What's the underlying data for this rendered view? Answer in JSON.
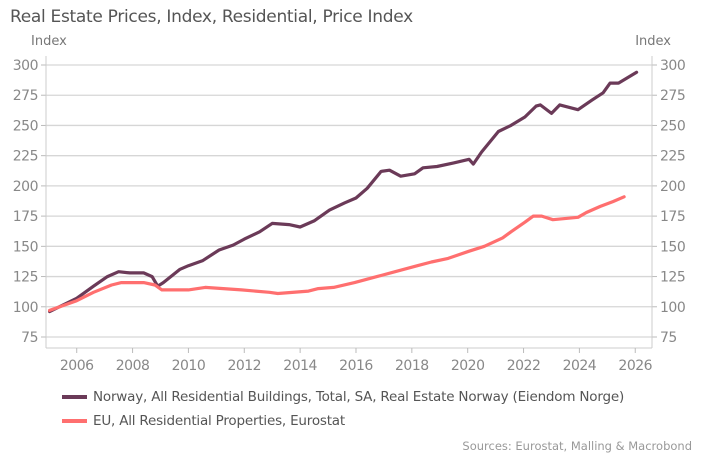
{
  "chart_data": {
    "type": "line",
    "title": "Real Estate Prices, Index, Residential, Price Index",
    "ylabel_left": "Index",
    "ylabel_right": "Index",
    "xlim": [
      2004.9,
      2026.6
    ],
    "ylim": [
      66,
      307
    ],
    "yticks": [
      75,
      100,
      125,
      150,
      175,
      200,
      225,
      250,
      275,
      300
    ],
    "xticks": [
      2006,
      2008,
      2010,
      2012,
      2014,
      2016,
      2018,
      2020,
      2022,
      2024,
      2026
    ],
    "grid": true,
    "legend_position": "bottom-left",
    "series": [
      {
        "name": "Norway, All Residential Buildings, Total, SA, Real Estate Norway (Eiendom Norge)",
        "color": "#6b3a58",
        "x": [
          2005.03,
          2006,
          2006.6,
          2007.1,
          2007.5,
          2007.9,
          2008.4,
          2008.7,
          2008.9,
          2009.1,
          2009.7,
          2010,
          2010.5,
          2011.1,
          2011.6,
          2012,
          2012.55,
          2013,
          2013.6,
          2014,
          2014.5,
          2015.05,
          2015.6,
          2016,
          2016.4,
          2016.9,
          2017.2,
          2017.6,
          2018.1,
          2018.4,
          2018.9,
          2019.5,
          2020.05,
          2020.2,
          2020.5,
          2021.1,
          2021.55,
          2022.05,
          2022.45,
          2022.6,
          2023.0,
          2023.3,
          2023.95,
          2024.45,
          2024.85,
          2025.1,
          2025.4,
          2026.05
        ],
        "y": [
          96,
          107,
          117,
          125,
          129,
          128,
          128,
          125,
          117,
          120,
          131,
          134,
          138,
          147,
          151,
          156,
          162,
          169,
          168,
          166,
          171,
          180,
          186,
          190,
          198,
          212,
          213,
          208,
          210,
          215,
          216,
          219,
          222,
          218,
          228,
          245,
          250,
          257,
          266,
          267,
          260,
          267,
          263,
          271,
          277,
          285,
          285,
          294
        ]
      },
      {
        "name": "EU, All Residential Properties, Eurostat",
        "color": "#ff6f6f",
        "x": [
          2005.03,
          2006,
          2006.6,
          2007.25,
          2007.6,
          2008.4,
          2008.8,
          2009.05,
          2010,
          2010.6,
          2011.9,
          2012.9,
          2013.2,
          2014.3,
          2014.65,
          2015.2,
          2015.95,
          2016.75,
          2017.4,
          2018.2,
          2018.7,
          2019.3,
          2020.05,
          2020.6,
          2021.25,
          2021.55,
          2022.05,
          2022.35,
          2022.65,
          2023.05,
          2023.95,
          2024.25,
          2024.75,
          2025.2,
          2025.6
        ],
        "y": [
          97,
          105,
          112,
          118,
          120,
          120,
          118,
          114,
          114,
          116,
          114,
          112,
          111,
          113,
          115,
          116,
          120,
          125,
          129,
          134,
          137,
          140,
          146,
          150,
          157,
          162,
          170,
          175,
          175,
          172,
          174,
          178,
          183,
          187,
          191
        ]
      }
    ],
    "source": "Sources: Eurostat, Malling & Macrobond"
  }
}
